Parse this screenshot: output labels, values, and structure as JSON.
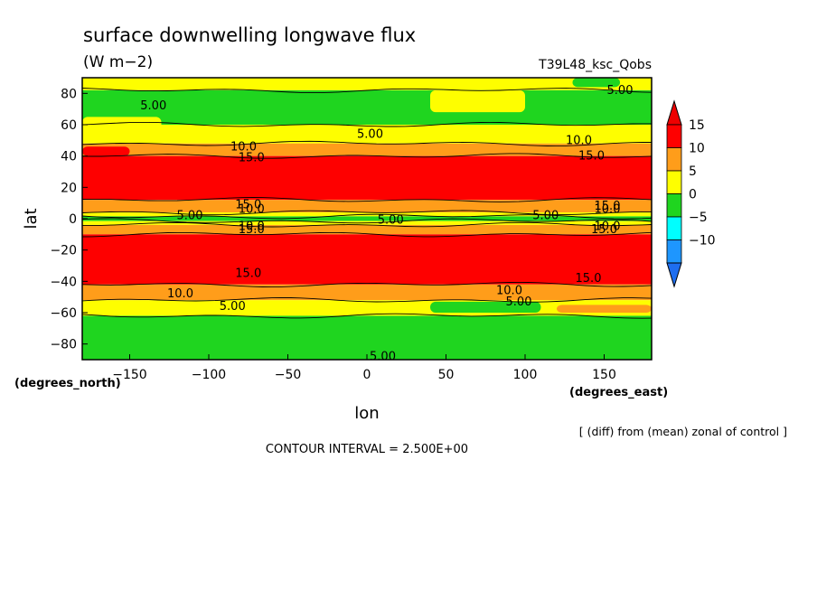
{
  "chart_data": {
    "type": "heatmap",
    "title": "surface downwelling longwave flux",
    "units": "(W m−2)",
    "run_label": "T39L48_ksc_Qobs",
    "xlabel": "lon",
    "ylabel": "lat",
    "xunits": "(degrees_east)",
    "yunits": "(degrees_north)",
    "xlim": [
      -180,
      180
    ],
    "ylim": [
      -90,
      90
    ],
    "xticks": [
      -150,
      -100,
      -50,
      0,
      50,
      100,
      150
    ],
    "yticks": [
      80,
      60,
      40,
      20,
      0,
      -20,
      -40,
      -60,
      -80
    ],
    "xtick_labels": [
      "−150",
      "−100",
      "−50",
      "0",
      "50",
      "100",
      "150"
    ],
    "ytick_labels": [
      "80",
      "60",
      "40",
      "20",
      "0",
      "−20",
      "−40",
      "−60",
      "−80"
    ],
    "bands": [
      {
        "lat_min": 82,
        "lat_max": 90,
        "level": 5
      },
      {
        "lat_min": 60,
        "lat_max": 82,
        "level": 0
      },
      {
        "lat_min": 48,
        "lat_max": 60,
        "level": 5
      },
      {
        "lat_min": 40,
        "lat_max": 48,
        "level": 10
      },
      {
        "lat_min": 12,
        "lat_max": 40,
        "level": 15
      },
      {
        "lat_min": 4,
        "lat_max": 12,
        "level": 10
      },
      {
        "lat_min": 1.5,
        "lat_max": 4,
        "level": 5
      },
      {
        "lat_min": -1.5,
        "lat_max": 1.5,
        "level": 0
      },
      {
        "lat_min": -4,
        "lat_max": -1.5,
        "level": 5
      },
      {
        "lat_min": -10,
        "lat_max": -4,
        "level": 10
      },
      {
        "lat_min": -42,
        "lat_max": -10,
        "level": 15
      },
      {
        "lat_min": -52,
        "lat_max": -42,
        "level": 10
      },
      {
        "lat_min": -62,
        "lat_max": -52,
        "level": 5
      },
      {
        "lat_min": -90,
        "lat_max": -62,
        "level": 0
      }
    ],
    "patches": [
      {
        "lon_min": -180,
        "lon_max": -130,
        "lat_min": 55,
        "lat_max": 65,
        "level": 5
      },
      {
        "lon_min": 40,
        "lon_max": 100,
        "lat_min": 68,
        "lat_max": 82,
        "level": 5
      },
      {
        "lon_min": 130,
        "lon_max": 160,
        "lat_min": 84,
        "lat_max": 90,
        "level": 0
      },
      {
        "lon_min": -180,
        "lon_max": -150,
        "lat_min": 40,
        "lat_max": 46,
        "level": 15
      },
      {
        "lon_min": 40,
        "lon_max": 110,
        "lat_min": -60,
        "lat_max": -53,
        "level": 0
      },
      {
        "lon_min": 120,
        "lon_max": 180,
        "lat_min": -60,
        "lat_max": -55,
        "level": 10
      }
    ],
    "contour_labels": [
      {
        "text": "5.00",
        "lon": -135,
        "lat": 72
      },
      {
        "text": "5.00",
        "lon": 2,
        "lat": 54
      },
      {
        "text": "5.00",
        "lon": 160,
        "lat": 82
      },
      {
        "text": "10.0",
        "lon": -78,
        "lat": 46
      },
      {
        "text": "10.0",
        "lon": 134,
        "lat": 50
      },
      {
        "text": "15.0",
        "lon": -73,
        "lat": 39
      },
      {
        "text": "15.0",
        "lon": 142,
        "lat": 40
      },
      {
        "text": "15.0",
        "lon": -75,
        "lat": 9
      },
      {
        "text": "15.0",
        "lon": 152,
        "lat": 8
      },
      {
        "text": "10.0",
        "lon": -73,
        "lat": 6
      },
      {
        "text": "10.0",
        "lon": 152,
        "lat": 6
      },
      {
        "text": "5.00",
        "lon": -112,
        "lat": 2
      },
      {
        "text": "5.00",
        "lon": 15,
        "lat": -1
      },
      {
        "text": "5.00",
        "lon": 113,
        "lat": 2
      },
      {
        "text": "10.0",
        "lon": -73,
        "lat": -5
      },
      {
        "text": "10.0",
        "lon": 152,
        "lat": -5
      },
      {
        "text": "15.0",
        "lon": -73,
        "lat": -7
      },
      {
        "text": "15.0",
        "lon": 150,
        "lat": -7
      },
      {
        "text": "15.0",
        "lon": -75,
        "lat": -35
      },
      {
        "text": "15.0",
        "lon": 140,
        "lat": -38
      },
      {
        "text": "10.0",
        "lon": -118,
        "lat": -48
      },
      {
        "text": "10.0",
        "lon": 90,
        "lat": -46
      },
      {
        "text": "5.00",
        "lon": -85,
        "lat": -56
      },
      {
        "text": "5.00",
        "lon": 96,
        "lat": -53
      },
      {
        "text": "5.00",
        "lon": 10,
        "lat": -88
      }
    ],
    "colorbar": {
      "levels": [
        "15",
        "10",
        "5",
        "0",
        "−5",
        "−10"
      ],
      "colors": [
        "#fe0000",
        "#ff9d1a",
        "#fefe00",
        "#1fd51f",
        "#00fefe",
        "#1e96fe"
      ],
      "top_color": "#ee0000",
      "bottom_color": "#1e6ef0"
    },
    "contour_interval": "CONTOUR INTERVAL = 2.500E+00",
    "note": "[ (diff) from (mean) zonal of control ]"
  }
}
